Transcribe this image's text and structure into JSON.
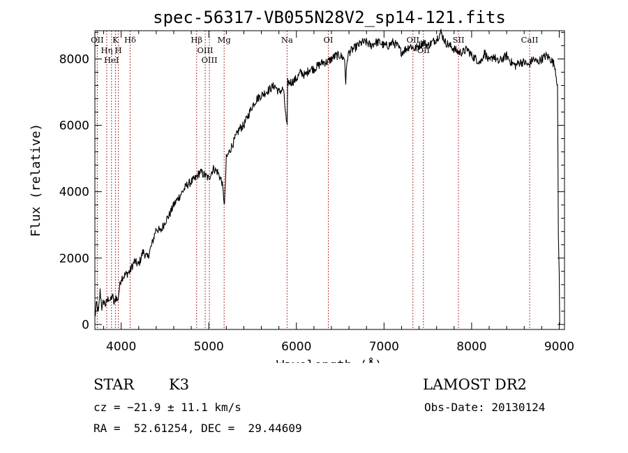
{
  "chart_data": {
    "type": "line",
    "title": "spec-56317-VB055N28V2_sp14-121.fits",
    "xlabel": "Wavelength (Å)",
    "ylabel": "Flux (relative)",
    "xlim": [
      3700,
      9060
    ],
    "ylim": [
      -150,
      8850
    ],
    "x_ticks": [
      4000,
      5000,
      6000,
      7000,
      8000,
      9000
    ],
    "y_ticks": [
      0,
      2000,
      4000,
      6000,
      8000
    ],
    "grid": false,
    "series": [
      {
        "x": [
          3700,
          3720,
          3740,
          3760,
          3780,
          3800,
          3820,
          3840,
          3860,
          3880,
          3900,
          3920,
          3940,
          3960,
          3980,
          4000,
          4050,
          4100,
          4150,
          4200,
          4250,
          4300,
          4350,
          4400,
          4450,
          4500,
          4550,
          4600,
          4650,
          4700,
          4750,
          4800,
          4850,
          4900,
          4950,
          5000,
          5050,
          5100,
          5150,
          5180,
          5200,
          5250,
          5300,
          5350,
          5400,
          5450,
          5500,
          5550,
          5600,
          5650,
          5700,
          5750,
          5800,
          5850,
          5890,
          5895,
          5900,
          5950,
          6000,
          6050,
          6100,
          6150,
          6200,
          6250,
          6300,
          6350,
          6400,
          6450,
          6500,
          6550,
          6563,
          6580,
          6600,
          6650,
          6700,
          6750,
          6800,
          6850,
          6900,
          6950,
          7000,
          7050,
          7100,
          7150,
          7200,
          7250,
          7300,
          7350,
          7400,
          7450,
          7500,
          7550,
          7600,
          7650,
          7700,
          7750,
          7800,
          7850,
          7900,
          7950,
          8000,
          8050,
          8100,
          8150,
          8200,
          8250,
          8300,
          8350,
          8400,
          8450,
          8500,
          8550,
          8600,
          8650,
          8700,
          8750,
          8800,
          8850,
          8900,
          8950,
          8980,
          8990,
          9000,
          9005,
          9010
        ],
        "y": [
          200,
          650,
          350,
          1000,
          500,
          700,
          600,
          700,
          800,
          700,
          900,
          600,
          850,
          700,
          1100,
          1400,
          1500,
          1600,
          1900,
          1800,
          2200,
          2000,
          2400,
          2900,
          2800,
          3100,
          3300,
          3600,
          3800,
          4000,
          4200,
          4300,
          4400,
          4600,
          4500,
          4400,
          4700,
          4600,
          4300,
          3600,
          5000,
          5300,
          5600,
          5900,
          6000,
          6300,
          6600,
          6800,
          6900,
          7000,
          7100,
          7200,
          7000,
          7100,
          6000,
          5900,
          7300,
          7300,
          7400,
          7600,
          7500,
          7700,
          7700,
          7800,
          7900,
          7900,
          8000,
          8100,
          8100,
          8000,
          7300,
          8000,
          8200,
          8300,
          8400,
          8500,
          8500,
          8400,
          8500,
          8500,
          8400,
          8400,
          8500,
          8400,
          8200,
          8300,
          8400,
          8300,
          8400,
          8500,
          8400,
          8500,
          8600,
          8800,
          8500,
          8400,
          8300,
          8200,
          8200,
          8300,
          8100,
          8000,
          7900,
          8200,
          7900,
          8100,
          7900,
          8000,
          8100,
          7900,
          7800,
          7900,
          7900,
          7800,
          8000,
          7900,
          8000,
          8100,
          8000,
          7800,
          7200,
          2700,
          1500,
          0,
          0
        ]
      }
    ],
    "spectral_lines": [
      {
        "label": "OII",
        "wavelength": 3727
      },
      {
        "label": "Hη",
        "wavelength": 3835
      },
      {
        "label": "HeI",
        "wavelength": 3889
      },
      {
        "label": "K",
        "wavelength": 3934
      },
      {
        "label": "H",
        "wavelength": 3968
      },
      {
        "label": "Hδ",
        "wavelength": 4102
      },
      {
        "label": "Hβ",
        "wavelength": 4861
      },
      {
        "label": "OIII",
        "wavelength": 4959
      },
      {
        "label": "OIII",
        "wavelength": 5007
      },
      {
        "label": "Mg",
        "wavelength": 5175
      },
      {
        "label": "Na",
        "wavelength": 5893
      },
      {
        "label": "OI",
        "wavelength": 6364
      },
      {
        "label": "OII",
        "wavelength": 7330
      },
      {
        "label": "OII",
        "wavelength": 7450
      },
      {
        "label": "SII",
        "wavelength": 7850
      },
      {
        "label": "CaII",
        "wavelength": 8662
      }
    ],
    "line_color": "#000000",
    "marker_line_color": "#b03030"
  },
  "info": {
    "object_class": "STAR",
    "subclass": "K3",
    "survey": "LAMOST DR2",
    "cz": "cz = −21.9 ± 11.1 km/s",
    "obs_date": "Obs-Date: 20130124",
    "coords": "RA =  52.61254, DEC =  29.44609"
  }
}
